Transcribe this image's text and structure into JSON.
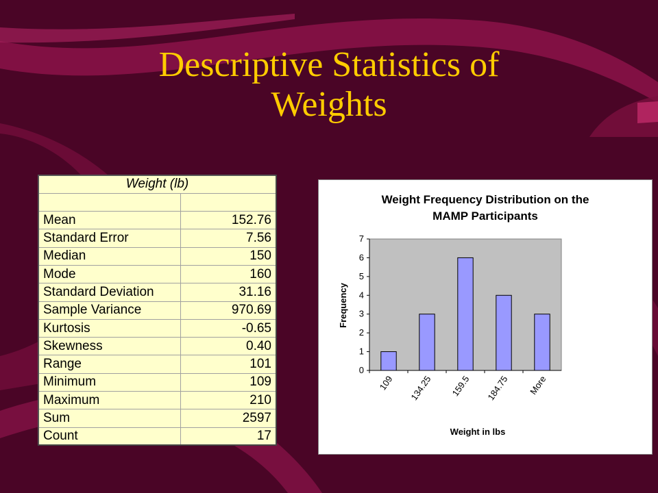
{
  "slide": {
    "title_line1": "Descriptive Statistics of",
    "title_line2": "Weights",
    "colors": {
      "background": "#4a0526",
      "swoosh": "#8b1349",
      "title": "#ffcc00"
    }
  },
  "stats_table": {
    "header": "Weight (lb)",
    "rows": [
      {
        "label": "Mean",
        "value": "152.76"
      },
      {
        "label": "Standard Error",
        "value": "7.56"
      },
      {
        "label": "Median",
        "value": "150"
      },
      {
        "label": "Mode",
        "value": "160"
      },
      {
        "label": "Standard Deviation",
        "value": "31.16"
      },
      {
        "label": "Sample Variance",
        "value": "970.69"
      },
      {
        "label": "Kurtosis",
        "value": "-0.65"
      },
      {
        "label": "Skewness",
        "value": "0.40"
      },
      {
        "label": "Range",
        "value": "101"
      },
      {
        "label": "Minimum",
        "value": "109"
      },
      {
        "label": "Maximum",
        "value": "210"
      },
      {
        "label": "Sum",
        "value": "2597"
      },
      {
        "label": "Count",
        "value": "17"
      }
    ]
  },
  "chart_data": {
    "type": "bar",
    "title_line1": "Weight Frequency Distribution on the",
    "title_line2": "MAMP Participants",
    "xlabel": "Weight in lbs",
    "ylabel": "Frequency",
    "categories": [
      "109",
      "134.25",
      "159.5",
      "184.75",
      "More"
    ],
    "values": [
      1,
      3,
      6,
      4,
      3
    ],
    "ylim": [
      0,
      7
    ],
    "yticks": [
      0,
      1,
      2,
      3,
      4,
      5,
      6,
      7
    ],
    "grid": false,
    "legend": "none",
    "colors": {
      "plot_area": "#c0c0c0",
      "bar": "#9999ff",
      "bar_edge": "#000000"
    }
  }
}
